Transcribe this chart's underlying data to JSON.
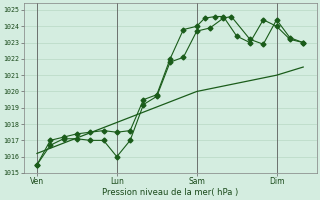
{
  "xlabel": "Pression niveau de la mer( hPa )",
  "bg_color": "#d4ede0",
  "grid_color": "#b8d8c4",
  "line_color": "#1a5c1a",
  "ylim": [
    1015,
    1025.4
  ],
  "xtick_labels": [
    "Ven",
    "Lun",
    "Sam",
    "Dim"
  ],
  "xtick_positions": [
    0,
    3,
    6,
    9
  ],
  "vline_positions": [
    0,
    3,
    6,
    9
  ],
  "line1_x": [
    0,
    0.5,
    1.0,
    1.5,
    2.0,
    2.5,
    3.0,
    3.5,
    4.0,
    4.5,
    5.0,
    5.5,
    6.0,
    6.5,
    7.0,
    7.3,
    8.0,
    8.5,
    9.0,
    9.5,
    10.0
  ],
  "line1_y": [
    1015.5,
    1016.7,
    1017.1,
    1017.1,
    1017.0,
    1017.0,
    1016.0,
    1017.0,
    1019.2,
    1019.7,
    1021.8,
    1022.1,
    1023.7,
    1023.9,
    1024.5,
    1024.6,
    1023.2,
    1022.9,
    1024.4,
    1023.3,
    1023.0
  ],
  "line2_x": [
    0,
    0.5,
    1.0,
    1.5,
    2.0,
    2.5,
    3.0,
    3.5,
    4.0,
    4.5,
    5.0,
    5.5,
    6.0,
    6.3,
    6.7,
    7.0,
    7.5,
    8.0,
    8.5,
    9.0,
    9.5,
    10.0
  ],
  "line2_y": [
    1015.5,
    1017.0,
    1017.2,
    1017.4,
    1017.5,
    1017.6,
    1017.5,
    1017.6,
    1019.5,
    1019.8,
    1022.0,
    1023.8,
    1024.0,
    1024.5,
    1024.6,
    1024.6,
    1023.4,
    1023.0,
    1024.4,
    1024.0,
    1023.2,
    1023.0
  ],
  "line3_x": [
    0,
    6,
    9,
    10
  ],
  "line3_y": [
    1016.2,
    1020.0,
    1021.0,
    1021.5
  ]
}
